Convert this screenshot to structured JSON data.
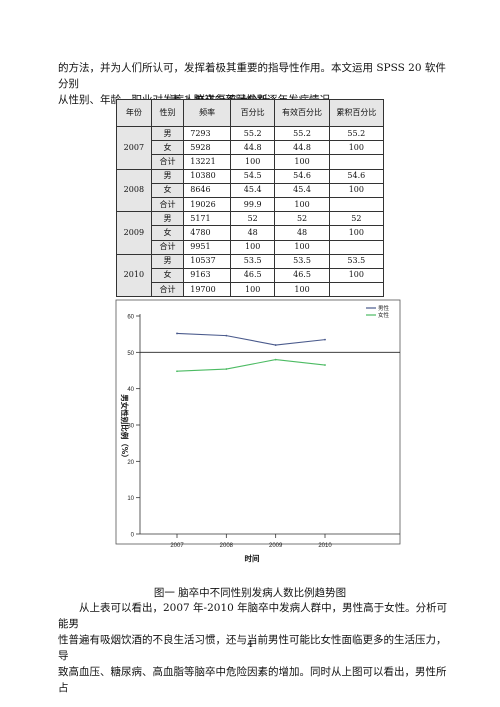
{
  "intro_lines": [
    "的方法，并为人们所认可，发挥着极其重要的指导性作用。本文运用 SPSS 20 软件分别",
    "从性别、年龄、职业对发病人群进行统计分析。"
  ],
  "table": {
    "caption": "表 1 脑卒中不同性别逐年发病情况",
    "headers": [
      "年份",
      "性别",
      "频率",
      "百分比",
      "有效百分比",
      "累积百分比"
    ],
    "groups": [
      {
        "year": "2007",
        "rows": [
          {
            "gender": "男",
            "freq": "7293",
            "pct": "55.2",
            "valid": "55.2",
            "cum": "55.2"
          },
          {
            "gender": "女",
            "freq": "5928",
            "pct": "44.8",
            "valid": "44.8",
            "cum": "100"
          },
          {
            "gender": "合计",
            "freq": "13221",
            "pct": "100",
            "valid": "100",
            "cum": ""
          }
        ]
      },
      {
        "year": "2008",
        "rows": [
          {
            "gender": "男",
            "freq": "10380",
            "pct": "54.5",
            "valid": "54.6",
            "cum": "54.6"
          },
          {
            "gender": "女",
            "freq": "8646",
            "pct": "45.4",
            "valid": "45.4",
            "cum": "100"
          },
          {
            "gender": "合计",
            "freq": "19026",
            "pct": "99.9",
            "valid": "100",
            "cum": ""
          }
        ]
      },
      {
        "year": "2009",
        "rows": [
          {
            "gender": "男",
            "freq": "5171",
            "pct": "52",
            "valid": "52",
            "cum": "52"
          },
          {
            "gender": "女",
            "freq": "4780",
            "pct": "48",
            "valid": "48",
            "cum": "100"
          },
          {
            "gender": "合计",
            "freq": "9951",
            "pct": "100",
            "valid": "100",
            "cum": ""
          }
        ]
      },
      {
        "year": "2010",
        "rows": [
          {
            "gender": "男",
            "freq": "10537",
            "pct": "53.5",
            "valid": "53.5",
            "cum": "53.5"
          },
          {
            "gender": "女",
            "freq": "9163",
            "pct": "46.5",
            "valid": "46.5",
            "cum": "100"
          },
          {
            "gender": "合计",
            "freq": "19700",
            "pct": "100",
            "valid": "100",
            "cum": ""
          }
        ]
      }
    ]
  },
  "chart_data": {
    "type": "line",
    "x": [
      "2007",
      "2008",
      "2009",
      "2010"
    ],
    "series": [
      {
        "name": "男性",
        "values": [
          55.2,
          54.6,
          52.0,
          53.5
        ],
        "color": "#4a5a8c"
      },
      {
        "name": "女性",
        "values": [
          44.8,
          45.4,
          48.0,
          46.5
        ],
        "color": "#4cbb63"
      }
    ],
    "xlabel": "时间",
    "ylabel": "男女性别比例（%）",
    "ylim": [
      0,
      60
    ],
    "yticks": [
      "0",
      "10",
      "20",
      "30",
      "40",
      "50",
      "60"
    ],
    "reference_line": 50.0,
    "legend": "top-right",
    "grid": false
  },
  "figure_caption": "图一 脑卒中不同性别发病人数比例趋势图",
  "analysis_lines": [
    "从上表可以看出，2007 年-2010 年脑卒中发病人群中，男性高于女性。分析可能男",
    "性普遍有吸烟饮酒的不良生活习惯，还与当前男性可能比女性面临更多的生活压力，导",
    "致高血压、糖尿病、高血脂等脑卒中危险因素的增加。同时从上图可以看出，男性所占"
  ],
  "page_number": "4"
}
